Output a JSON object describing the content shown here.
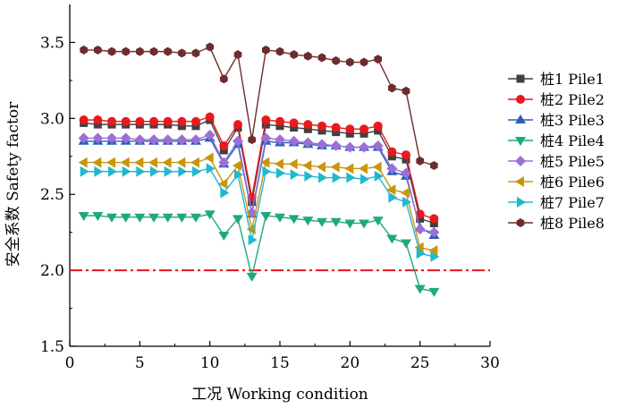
{
  "chart_data": {
    "type": "line",
    "xlabel": "工况 Working condition",
    "ylabel": "安全系数 Safety factor",
    "xlim": [
      0,
      30
    ],
    "ylim": [
      1.5,
      3.75
    ],
    "xticks": [
      0,
      5,
      10,
      15,
      20,
      25,
      30
    ],
    "yticks": [
      1.5,
      2.0,
      2.5,
      3.0,
      3.5
    ],
    "x": [
      1,
      2,
      3,
      4,
      5,
      6,
      7,
      8,
      9,
      10,
      11,
      12,
      13,
      14,
      15,
      16,
      17,
      18,
      19,
      20,
      21,
      22,
      23,
      24,
      25,
      26
    ],
    "reference_line": {
      "y": 2.0,
      "color": "#e8131b",
      "style": "dash-dot"
    },
    "legend_position": "right",
    "series": [
      {
        "name": "桩1 Pile1",
        "color": "#404040",
        "marker": "square",
        "values": [
          2.97,
          2.96,
          2.96,
          2.96,
          2.96,
          2.96,
          2.96,
          2.95,
          2.95,
          2.99,
          2.79,
          2.94,
          2.45,
          2.96,
          2.95,
          2.94,
          2.93,
          2.92,
          2.91,
          2.9,
          2.9,
          2.92,
          2.75,
          2.73,
          2.34,
          2.31
        ]
      },
      {
        "name": "桩2 Pile2",
        "color": "#e8191f",
        "marker": "circle",
        "values": [
          2.99,
          2.99,
          2.98,
          2.98,
          2.98,
          2.98,
          2.98,
          2.98,
          2.98,
          3.01,
          2.82,
          2.96,
          2.48,
          2.99,
          2.98,
          2.97,
          2.96,
          2.95,
          2.94,
          2.93,
          2.93,
          2.95,
          2.78,
          2.76,
          2.37,
          2.34
        ]
      },
      {
        "name": "桩3 Pile3",
        "color": "#2d5fb8",
        "marker": "triangle-up",
        "values": [
          2.85,
          2.85,
          2.85,
          2.85,
          2.85,
          2.85,
          2.85,
          2.85,
          2.85,
          2.87,
          2.7,
          2.83,
          2.37,
          2.85,
          2.84,
          2.84,
          2.83,
          2.82,
          2.82,
          2.81,
          2.81,
          2.81,
          2.65,
          2.62,
          2.28,
          2.23
        ]
      },
      {
        "name": "桩4 Pile4",
        "color": "#1fa97a",
        "marker": "triangle-down",
        "values": [
          2.36,
          2.36,
          2.35,
          2.35,
          2.35,
          2.35,
          2.35,
          2.35,
          2.35,
          2.37,
          2.23,
          2.34,
          1.96,
          2.36,
          2.35,
          2.34,
          2.33,
          2.32,
          2.32,
          2.31,
          2.31,
          2.33,
          2.21,
          2.18,
          1.88,
          1.86
        ]
      },
      {
        "name": "桩5 Pile5",
        "color": "#9b6fd6",
        "marker": "diamond",
        "values": [
          2.87,
          2.87,
          2.87,
          2.87,
          2.86,
          2.86,
          2.86,
          2.86,
          2.86,
          2.89,
          2.71,
          2.85,
          2.38,
          2.87,
          2.86,
          2.85,
          2.84,
          2.83,
          2.82,
          2.81,
          2.81,
          2.82,
          2.67,
          2.64,
          2.27,
          2.25
        ]
      },
      {
        "name": "桩6 Pile6",
        "color": "#c8960c",
        "marker": "triangle-left",
        "values": [
          2.71,
          2.71,
          2.71,
          2.71,
          2.71,
          2.71,
          2.71,
          2.71,
          2.71,
          2.74,
          2.57,
          2.69,
          2.27,
          2.71,
          2.7,
          2.7,
          2.69,
          2.68,
          2.68,
          2.67,
          2.67,
          2.68,
          2.53,
          2.51,
          2.15,
          2.13
        ]
      },
      {
        "name": "桩7 Pile7",
        "color": "#21b8cf",
        "marker": "triangle-right",
        "values": [
          2.65,
          2.65,
          2.65,
          2.65,
          2.65,
          2.65,
          2.65,
          2.65,
          2.65,
          2.67,
          2.51,
          2.63,
          2.2,
          2.65,
          2.64,
          2.63,
          2.62,
          2.61,
          2.61,
          2.61,
          2.6,
          2.62,
          2.48,
          2.45,
          2.11,
          2.09
        ]
      },
      {
        "name": "桩8 Pile8",
        "color": "#6e2c2c",
        "marker": "hexagon",
        "values": [
          3.45,
          3.45,
          3.44,
          3.44,
          3.44,
          3.44,
          3.44,
          3.43,
          3.43,
          3.47,
          3.26,
          3.42,
          2.86,
          3.45,
          3.44,
          3.42,
          3.41,
          3.4,
          3.38,
          3.37,
          3.37,
          3.39,
          3.2,
          3.18,
          2.72,
          2.69
        ]
      }
    ]
  }
}
